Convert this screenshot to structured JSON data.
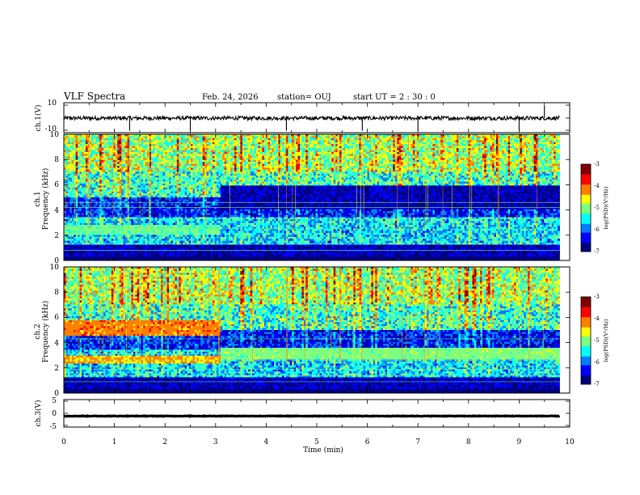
{
  "header": {
    "title": "VLF Spectra",
    "date": "Feb. 24, 2026",
    "station": "station= OUJ",
    "start_ut": "start UT = 2 : 30 : 0"
  },
  "chart_data": [
    {
      "type": "line",
      "panel": "ch1-waveform",
      "ylabel": "ch.1(V)",
      "ylim": [
        -10,
        10
      ],
      "yticks": [
        "10",
        "-10"
      ],
      "xlim": [
        0,
        10
      ],
      "trace": {
        "x_end": 9.8,
        "baseline": -0.3,
        "noise": 1.3,
        "spikes": [
          1.3,
          2.5,
          4.4,
          5.9,
          7.0,
          9.0,
          9.5
        ]
      }
    },
    {
      "type": "heatmap",
      "panel": "ch1-spectrogram",
      "ylabel_line1": "ch.1",
      "ylabel_line2": "Frequency (kHz)",
      "ylim": [
        0,
        10
      ],
      "yticks": [
        "0",
        "2",
        "4",
        "6",
        "8",
        "10"
      ],
      "xlim": [
        0,
        10
      ],
      "data_x_end": 9.8,
      "colorbar": {
        "min": -7,
        "max": -3,
        "ticks": [
          "-3",
          "-4",
          "-5",
          "-6",
          "-7"
        ],
        "label": "log(PSD)(V²/Hz)"
      }
    },
    {
      "type": "heatmap",
      "panel": "ch2-spectrogram",
      "ylabel_line1": "ch.2",
      "ylabel_line2": "Frequency (kHz)",
      "ylim": [
        0,
        10
      ],
      "yticks": [
        "0",
        "2",
        "4",
        "6",
        "8",
        "10"
      ],
      "xlim": [
        0,
        10
      ],
      "data_x_end": 9.8,
      "colorbar": {
        "min": -7,
        "max": -3,
        "ticks": [
          "-3",
          "-4",
          "-5",
          "-6",
          "-7"
        ],
        "label": "log(PSD)(V²/Hz)"
      }
    },
    {
      "type": "line",
      "panel": "ch3-waveform",
      "ylabel": "ch.3(V)",
      "ylim": [
        -5,
        5
      ],
      "yticks": [
        "5",
        "0",
        "-5"
      ],
      "xlim": [
        0,
        10
      ],
      "trace": {
        "x_end": 9.8,
        "baseline": -1.0,
        "noise": 0.1,
        "spikes": []
      }
    }
  ],
  "xaxis": {
    "label": "Time (min)",
    "ticks": [
      "0",
      "1",
      "2",
      "3",
      "4",
      "5",
      "6",
      "7",
      "8",
      "9",
      "10"
    ]
  },
  "colors": {
    "colormap": [
      "#00007f",
      "#0000ff",
      "#007fff",
      "#00ffff",
      "#7fff7f",
      "#ffff00",
      "#ff7f00",
      "#ff0000",
      "#7f0000"
    ],
    "trace": "#000000",
    "axes": "#000000"
  }
}
